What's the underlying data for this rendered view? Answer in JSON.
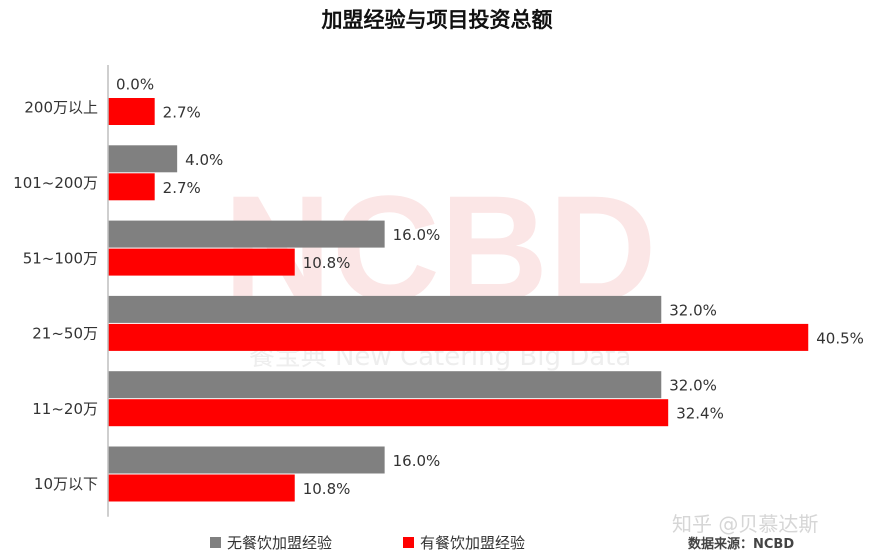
{
  "title": "加盟经验与项目投资总额",
  "watermark": {
    "brand": "NCBD",
    "subtitle": "餐宝典  New Catering Big Data"
  },
  "source_text": "数据来源：NCBD",
  "zhihu_mark": "知乎 @贝慕达斯",
  "colors": {
    "series1": "#808080",
    "series2": "#ff0000"
  },
  "chart_data": {
    "type": "bar",
    "orientation": "horizontal",
    "categories": [
      "200万以上",
      "101~200万",
      "51~100万",
      "21~50万",
      "11~20万",
      "10万以下"
    ],
    "series": [
      {
        "name": "无餐饮加盟经验",
        "values": [
          0.0,
          4.0,
          16.0,
          32.0,
          32.0,
          16.0
        ],
        "labels": [
          "0.0%",
          "4.0%",
          "16.0%",
          "32.0%",
          "32.0%",
          "16.0%"
        ]
      },
      {
        "name": "有餐饮加盟经验",
        "values": [
          2.7,
          2.7,
          10.8,
          40.5,
          32.4,
          10.8
        ],
        "labels": [
          "2.7%",
          "2.7%",
          "10.8%",
          "40.5%",
          "32.4%",
          "10.8%"
        ]
      }
    ],
    "legend_position": "bottom",
    "grid": false
  }
}
